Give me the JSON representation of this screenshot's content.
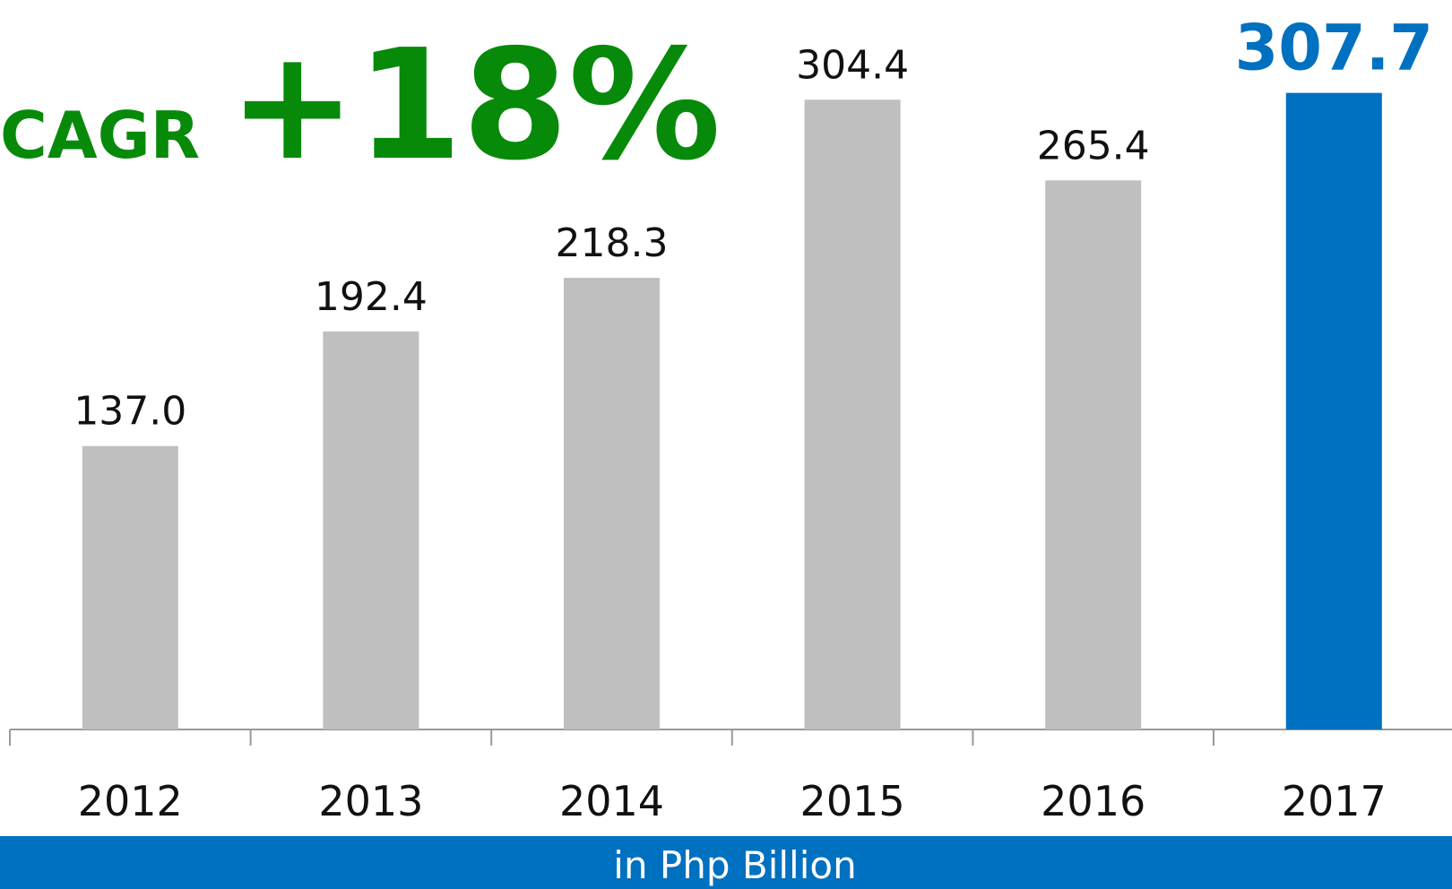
{
  "chart_data": {
    "type": "bar",
    "annotation": {
      "label": "CAGR",
      "value": "+18%"
    },
    "categories": [
      "2012",
      "2013",
      "2014",
      "2015",
      "2016",
      "2017"
    ],
    "values": [
      137.0,
      192.4,
      218.3,
      304.4,
      265.4,
      307.7
    ],
    "value_labels": [
      "137.0",
      "192.4",
      "218.3",
      "304.4",
      "265.4",
      "307.7"
    ],
    "color": "#bfbfbf",
    "colors": [
      "#bfbfbf",
      "#bfbfbf",
      "#bfbfbf",
      "#bfbfbf",
      "#bfbfbf",
      "#0070c0"
    ],
    "ylim": [
      0,
      350
    ],
    "footer": "in Php Billion"
  }
}
